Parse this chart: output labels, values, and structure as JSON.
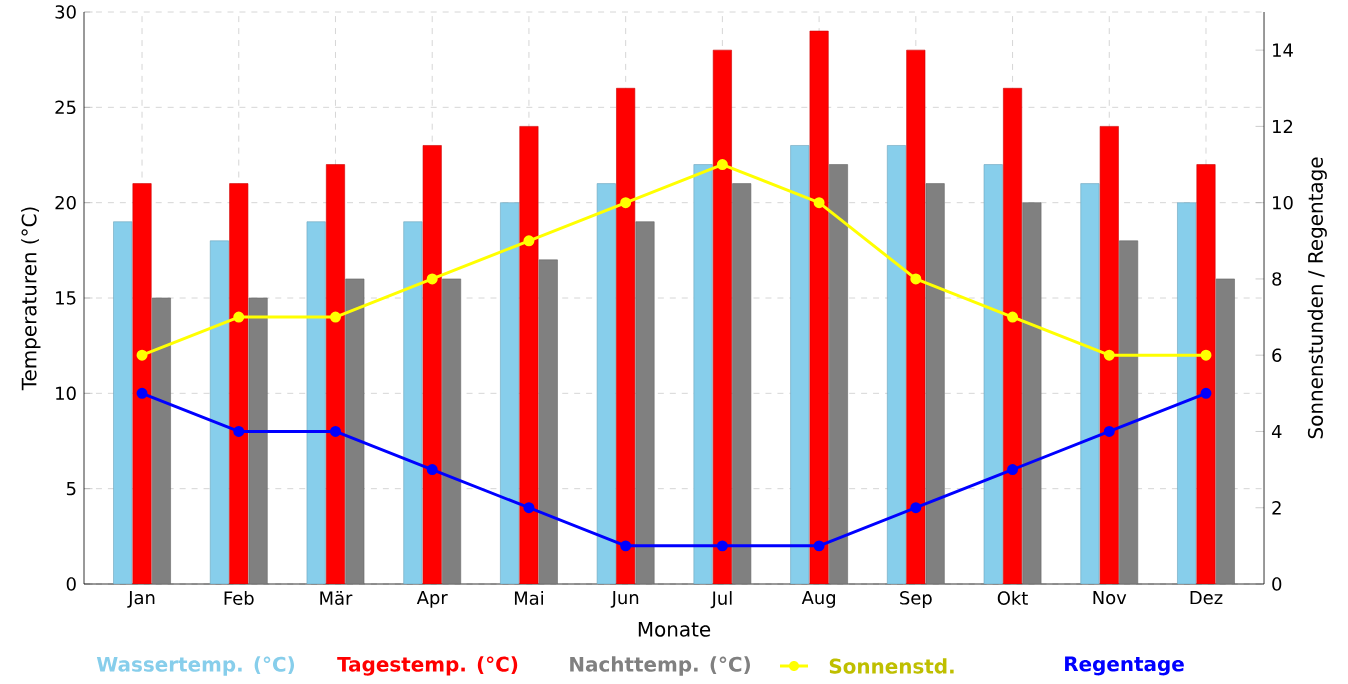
{
  "chart_data": {
    "type": "bar",
    "xlabel": "Monate",
    "ylabel": "Temperaturen (°C)",
    "y2label": "Sonnenstunden / Regentage",
    "categories": [
      "Jan",
      "Feb",
      "Mär",
      "Apr",
      "Mai",
      "Jun",
      "Jul",
      "Aug",
      "Sep",
      "Okt",
      "Nov",
      "Dez"
    ],
    "series": [
      {
        "name": "Wassertemp. (°C)",
        "color": "#87ceeb",
        "values": [
          19,
          18,
          19,
          19,
          20,
          21,
          22,
          23,
          23,
          22,
          21,
          20
        ]
      },
      {
        "name": "Tagestemp. (°C)",
        "color": "#ff0000",
        "values": [
          21,
          21,
          22,
          23,
          24,
          26,
          28,
          29,
          28,
          26,
          24,
          22
        ]
      },
      {
        "name": "Nachttemp. (°C)",
        "color": "#808080",
        "values": [
          15,
          15,
          16,
          16,
          17,
          19,
          21,
          22,
          21,
          20,
          18,
          16
        ]
      },
      {
        "name": "Sonnenstd.",
        "color": "#ffff00",
        "type": "line",
        "axis": "y2",
        "values": [
          6,
          7,
          7,
          8,
          9,
          10,
          11,
          10,
          8,
          7,
          6,
          6
        ]
      },
      {
        "name": "Regentage",
        "color": "#0000ff",
        "type": "line",
        "axis": "y2",
        "values": [
          5,
          4,
          4,
          3,
          2,
          1,
          1,
          1,
          2,
          3,
          4,
          5
        ]
      }
    ],
    "ylim": [
      0,
      30
    ],
    "yticks": [
      0,
      5,
      10,
      15,
      20,
      25,
      30
    ],
    "y2lim": [
      0,
      15
    ],
    "y2ticks": [
      0,
      2,
      4,
      6,
      8,
      10,
      12,
      14
    ],
    "grid": true,
    "legend": "bottom",
    "marker": "circle",
    "line_style": "solid"
  }
}
